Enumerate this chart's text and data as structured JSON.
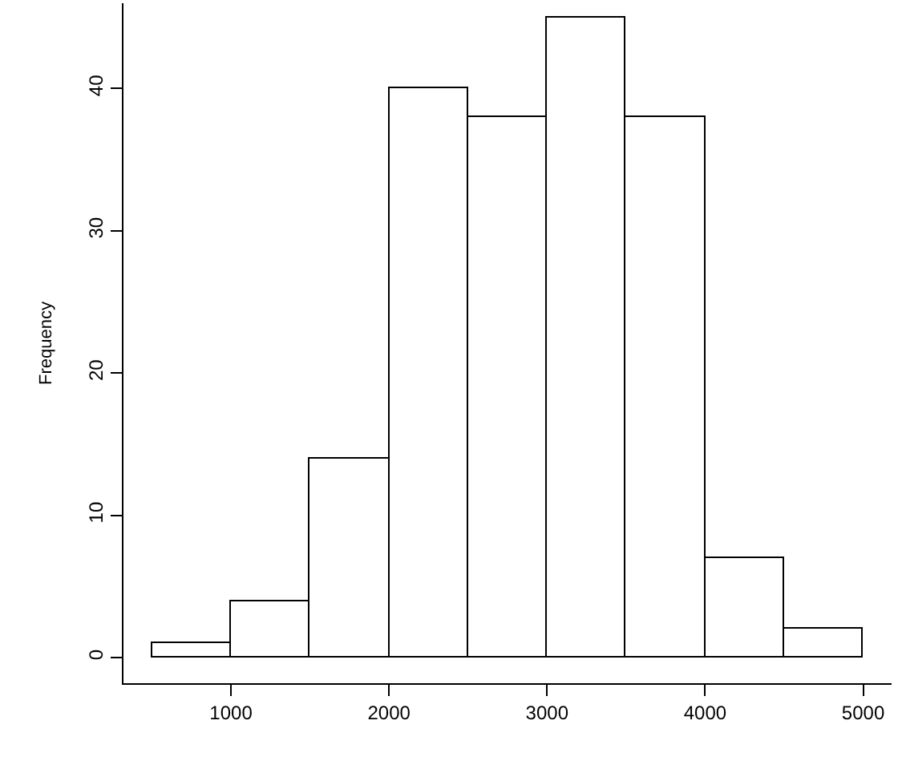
{
  "chart_data": {
    "type": "histogram",
    "ylabel": "Frequency",
    "bins": [
      500,
      1000,
      1500,
      2000,
      2500,
      3000,
      3500,
      4000,
      4500,
      5000
    ],
    "values": [
      1,
      4,
      14,
      40,
      38,
      45,
      38,
      7,
      2
    ],
    "color": "#ffffff",
    "xlim": [
      320,
      5180
    ],
    "xticks": [
      1000,
      2000,
      3000,
      4000,
      5000
    ],
    "ylim": [
      -1.8,
      46
    ],
    "yticks": [
      0,
      10,
      20,
      30,
      40
    ]
  }
}
